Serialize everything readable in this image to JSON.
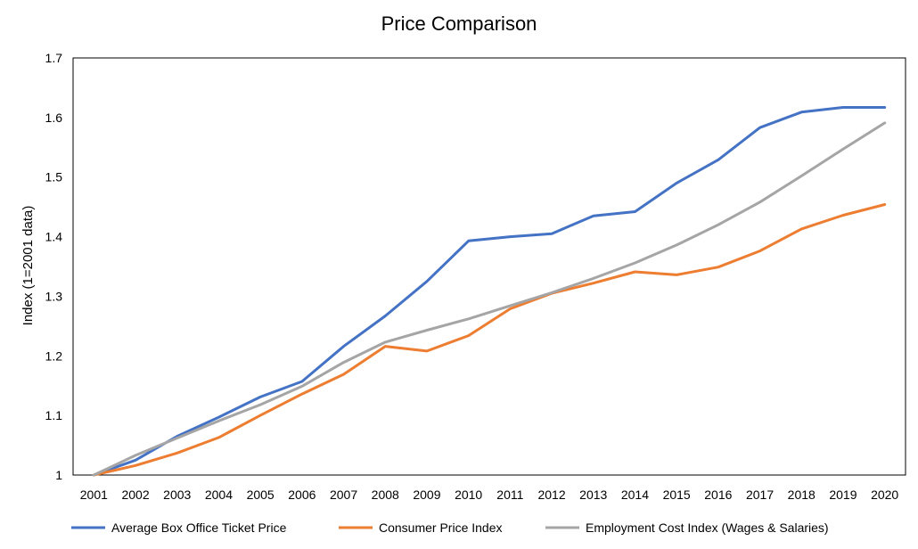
{
  "chart_data": {
    "type": "line",
    "title": "Price Comparison",
    "xlabel": "",
    "ylabel": "Index (1=2001 data)",
    "ylim": [
      1,
      1.7
    ],
    "yticks": [
      "1",
      "1.1",
      "1.2",
      "1.3",
      "1.4",
      "1.5",
      "1.6",
      "1.7"
    ],
    "categories": [
      "2001",
      "2002",
      "2003",
      "2004",
      "2005",
      "2006",
      "2007",
      "2008",
      "2009",
      "2010",
      "2011",
      "2012",
      "2013",
      "2014",
      "2015",
      "2016",
      "2017",
      "2018",
      "2019",
      "2020"
    ],
    "grid": false,
    "legend_position": "bottom",
    "series": [
      {
        "name": "Average Box Office Ticket Price",
        "color": "#4472C4",
        "values": [
          1.0,
          1.025,
          1.065,
          1.097,
          1.131,
          1.157,
          1.216,
          1.267,
          1.325,
          1.393,
          1.4,
          1.405,
          1.435,
          1.442,
          1.49,
          1.529,
          1.583,
          1.609,
          1.617,
          1.617
        ]
      },
      {
        "name": "Consumer Price Index",
        "color": "#ED7D31",
        "values": [
          1.0,
          1.016,
          1.037,
          1.063,
          1.1,
          1.136,
          1.169,
          1.216,
          1.208,
          1.234,
          1.279,
          1.305,
          1.322,
          1.341,
          1.336,
          1.349,
          1.376,
          1.413,
          1.436,
          1.454
        ]
      },
      {
        "name": "Employment Cost Index (Wages & Salaries)",
        "color": "#A5A5A5",
        "values": [
          1.0,
          1.033,
          1.062,
          1.091,
          1.118,
          1.149,
          1.189,
          1.223,
          1.243,
          1.262,
          1.284,
          1.306,
          1.33,
          1.356,
          1.386,
          1.42,
          1.458,
          1.502,
          1.547,
          1.591
        ]
      }
    ]
  }
}
